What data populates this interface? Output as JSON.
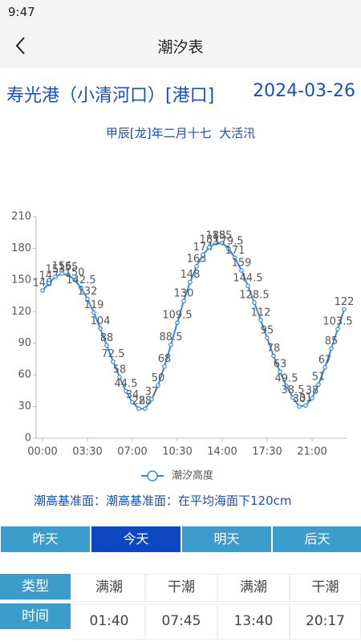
{
  "status_bar": {
    "time": "9:47"
  },
  "header": {
    "title": "潮汐表"
  },
  "station": {
    "name": "寿光港（小清河口）[港口]",
    "date": "2024-03-26"
  },
  "lunar": "甲辰[龙]年二月十七  大活汛",
  "chart_data": {
    "type": "line",
    "categories": [
      "00:00",
      null,
      null,
      null,
      null,
      null,
      null,
      "03:30",
      null,
      null,
      null,
      null,
      null,
      null,
      "07:00",
      null,
      null,
      null,
      null,
      null,
      null,
      "10:30",
      null,
      null,
      null,
      null,
      null,
      null,
      "14:00",
      null,
      null,
      null,
      null,
      null,
      null,
      "17:30",
      null,
      null,
      null,
      null,
      null,
      null,
      "21:00",
      null,
      null,
      null,
      null,
      null
    ],
    "series": [
      {
        "name": "潮汐高度",
        "color": "#2f8ce0",
        "values": [
          140,
          147,
          153,
          156,
          155,
          150,
          142.5,
          132,
          119,
          104,
          88,
          72.5,
          58,
          44.5,
          34,
          28,
          28,
          37,
          50,
          68,
          88.5,
          109.5,
          130,
          148,
          163,
          174,
          181,
          185,
          185,
          179.5,
          171,
          159,
          144.5,
          128.5,
          112,
          95,
          78,
          63,
          49.5,
          38.5,
          30,
          31,
          38,
          51,
          67,
          85,
          103.5,
          122
        ]
      }
    ],
    "ylim": [
      0,
      210
    ],
    "yticks": [
      0,
      30,
      60,
      90,
      120,
      150,
      180,
      210
    ],
    "grid": false,
    "legend": "bottom"
  },
  "datum_note": "潮高基准面：潮高基准面：在平均海面下120cm",
  "tabs": [
    "昨天",
    "今天",
    "明天",
    "后天"
  ],
  "active_tab": 1,
  "table": {
    "rows": [
      [
        "类型",
        "满潮",
        "干潮",
        "满潮",
        "干潮"
      ],
      [
        "时间",
        "01:40",
        "07:45",
        "13:40",
        "20:17"
      ]
    ]
  }
}
